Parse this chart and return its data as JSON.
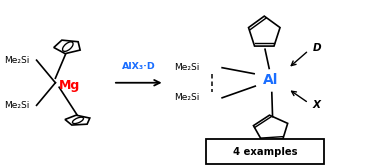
{
  "background_color": "#ffffff",
  "text_color": "#000000",
  "mg_color": "#ff0000",
  "al_color": "#1a6eff",
  "reagent_color": "#1a6eff",
  "box_color": "#000000",
  "fig_width": 3.78,
  "fig_height": 1.67,
  "dpi": 100,
  "left_me2si_top": "Me₂Si",
  "left_me2si_bot": "Me₂Si",
  "right_me2si_top": "Me₂Si",
  "right_me2si_bot": "Me₂Si",
  "mg_label": "Mg",
  "al_label": "Al",
  "reagent_label": "AlX₃·D",
  "d_label": "D",
  "x_label": "X",
  "box_label": "4 examples"
}
